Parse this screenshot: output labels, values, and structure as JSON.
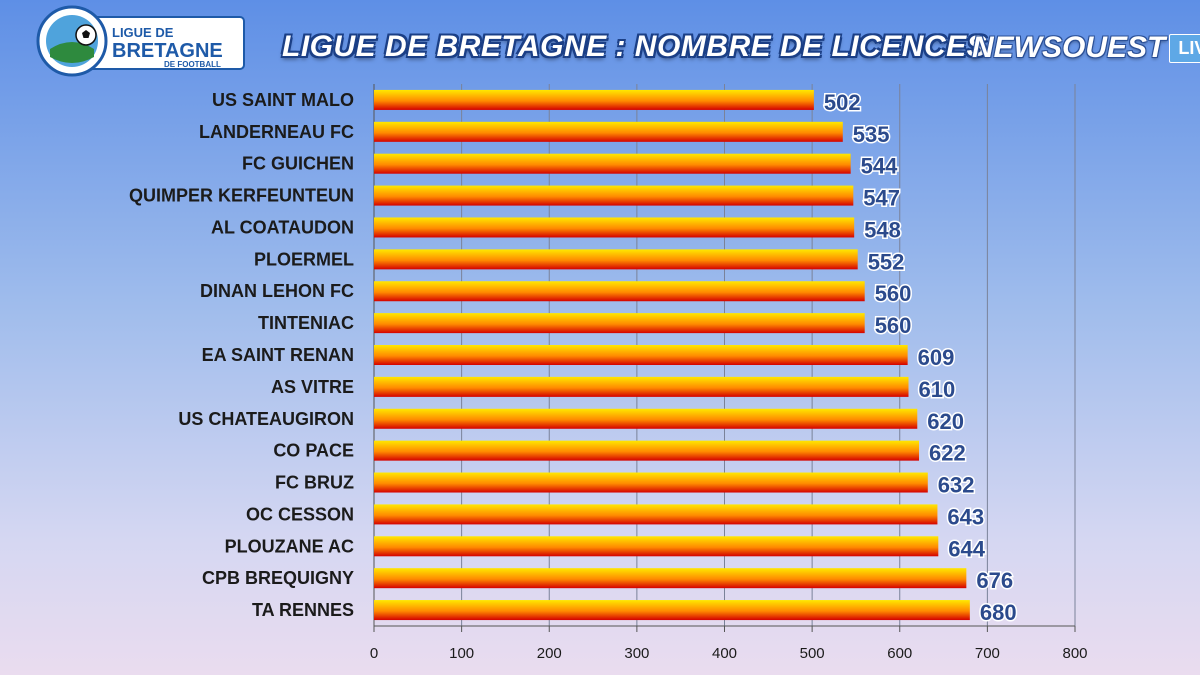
{
  "logo": {
    "line1": "LIGUE DE",
    "line2": "BRETAGNE",
    "line3": "DE FOOTBALL",
    "icon": "football-icon"
  },
  "title": "LIGUE DE BRETAGNE : NOMBRE DE LICENCES",
  "brand": {
    "name": "NEWSOUEST",
    "badge": "LIVE"
  },
  "colors": {
    "bar_top": "#ffe800",
    "bar_mid": "#ff8a00",
    "bar_bottom": "#d40000",
    "value_text": "#2b4a8c",
    "title_outline": "#1b3f86"
  },
  "chart_data": {
    "type": "bar",
    "orientation": "horizontal",
    "title": "LIGUE DE BRETAGNE : NOMBRE DE LICENCES",
    "categories": [
      "US SAINT MALO",
      "LANDERNEAU FC",
      "FC GUICHEN",
      "QUIMPER KERFEUNTEUN",
      "AL COATAUDON",
      "PLOERMEL",
      "DINAN LEHON FC",
      "TINTENIAC",
      "EA SAINT RENAN",
      "AS VITRE",
      "US CHATEAUGIRON",
      "CO PACE",
      "FC BRUZ",
      "OC CESSON",
      "PLOUZANE AC",
      "CPB BREQUIGNY",
      "TA RENNES"
    ],
    "values": [
      502,
      535,
      544,
      547,
      548,
      552,
      560,
      560,
      609,
      610,
      620,
      622,
      632,
      643,
      644,
      676,
      680
    ],
    "xlim": [
      0,
      800
    ],
    "ticks": [
      0,
      100,
      200,
      300,
      400,
      500,
      600,
      700,
      800
    ],
    "grid": "vertical",
    "legend": "none",
    "xlabel": "",
    "ylabel": ""
  }
}
